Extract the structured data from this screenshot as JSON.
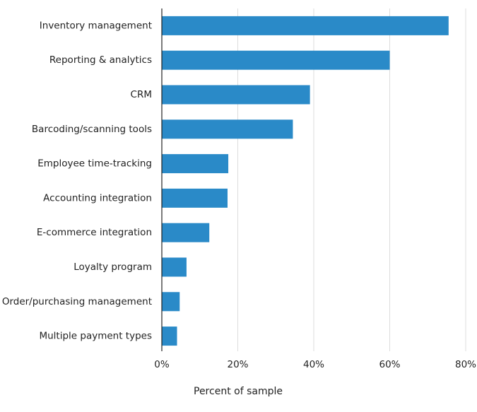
{
  "colors": {
    "bar": "#2a8ac8",
    "grid": "#dcdcdc",
    "axis": "#222222",
    "text": "#222222"
  },
  "chart_data": {
    "type": "bar",
    "orientation": "horizontal",
    "categories": [
      "Inventory management",
      "Reporting & analytics",
      "CRM",
      "Barcoding/scanning tools",
      "Employee time-tracking",
      "Accounting integration",
      "E-commerce integration",
      "Loyalty program",
      "Order/purchasing management",
      "Multiple payment types"
    ],
    "values": [
      75.5,
      60,
      39,
      34.5,
      17.5,
      17.3,
      12.5,
      6.5,
      4.7,
      4.0
    ],
    "value_unit": "percent",
    "xlabel": "Percent of sample",
    "ylabel": "",
    "xlim": [
      0,
      80
    ],
    "xticks": [
      0,
      20,
      40,
      60,
      80
    ],
    "xtick_labels": [
      "0%",
      "20%",
      "40%",
      "60%",
      "80%"
    ],
    "grid": true,
    "legend": "none"
  }
}
